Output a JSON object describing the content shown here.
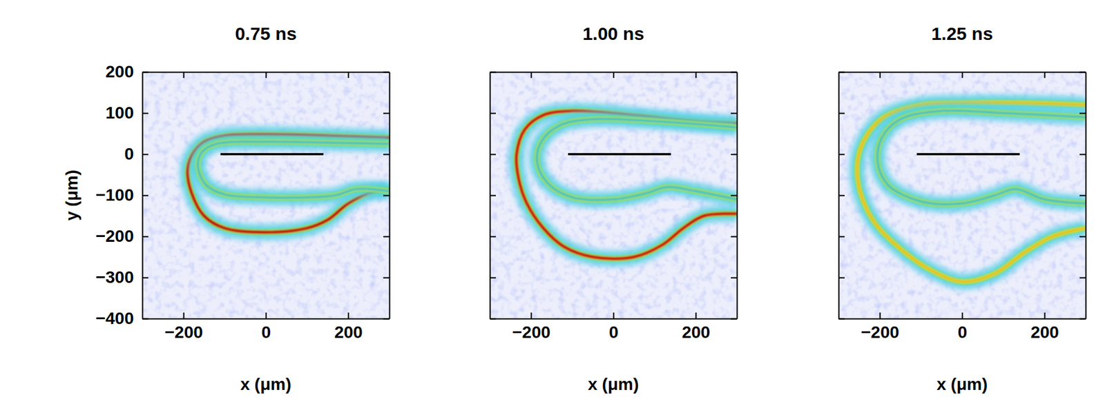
{
  "chart_data": [
    {
      "type": "line",
      "title": "0.75 ns",
      "x_label": "x (μm)",
      "y_label": "y (μm)",
      "xlim": [
        -300,
        300
      ],
      "ylim": [
        -400,
        200
      ],
      "xticks": [
        {
          "value": -200,
          "label": "−200"
        },
        0,
        200
      ],
      "yticks": [
        200,
        100,
        0,
        {
          "value": -100,
          "label": "−100"
        },
        {
          "value": -200,
          "label": "−200"
        },
        {
          "value": -300,
          "label": "−300"
        },
        {
          "value": -400,
          "label": "−400"
        }
      ],
      "series": [
        {
          "color": "#b00000",
          "line_style": "glow",
          "x": [
            300,
            250,
            200,
            150,
            100,
            0,
            -100,
            -150,
            -180,
            -190,
            -178,
            -150,
            -100,
            0,
            150,
            300
          ],
          "values": [
            -85,
            -95,
            -120,
            -160,
            -180,
            -190,
            -180,
            -150,
            -95,
            -40,
            0,
            30,
            45,
            48,
            45,
            40
          ]
        },
        {
          "color": "#30c0d8",
          "line_style": "glow",
          "x": [
            300,
            220,
            170,
            100,
            0,
            -100,
            -145,
            -165,
            -155,
            -120,
            0,
            150,
            300
          ],
          "values": [
            -90,
            -85,
            -100,
            -105,
            -105,
            -98,
            -75,
            -30,
            5,
            25,
            30,
            28,
            25
          ]
        },
        {
          "color": "#000000",
          "line_style": "solid",
          "x": [
            -110,
            140
          ],
          "values": [
            0,
            0
          ]
        }
      ]
    },
    {
      "type": "line",
      "title": "1.00 ns",
      "x_label": "x (μm)",
      "xlim": [
        -300,
        300
      ],
      "ylim": [
        -400,
        200
      ],
      "xticks": [
        {
          "value": -200,
          "label": "−200"
        },
        0,
        200
      ],
      "yticks": [
        200,
        100,
        0,
        {
          "value": -100,
          "label": "−100"
        },
        {
          "value": -200,
          "label": "−200"
        },
        {
          "value": -300,
          "label": "−300"
        },
        {
          "value": -400,
          "label": "−400"
        }
      ],
      "tick_labels": "x",
      "series": [
        {
          "color": "#c00000",
          "line_style": "glow",
          "x": [
            300,
            200,
            50,
            -100,
            -170,
            -215,
            -235,
            -230,
            -210,
            -170,
            -120,
            -50,
            50,
            120,
            170,
            220,
            300
          ],
          "values": [
            75,
            80,
            95,
            105,
            95,
            60,
            0,
            -60,
            -120,
            -180,
            -225,
            -250,
            -250,
            -220,
            -180,
            -150,
            -145
          ]
        },
        {
          "color": "#30c0d8",
          "line_style": "glow",
          "x": [
            300,
            200,
            130,
            80,
            0,
            -100,
            -160,
            -185,
            -175,
            -130,
            -50,
            100,
            300
          ],
          "values": [
            -110,
            -90,
            -80,
            -95,
            -110,
            -105,
            -70,
            -20,
            30,
            70,
            85,
            80,
            65
          ]
        },
        {
          "color": "#000000",
          "line_style": "solid",
          "x": [
            -110,
            140
          ],
          "values": [
            0,
            0
          ]
        }
      ]
    },
    {
      "type": "line",
      "title": "1.25 ns",
      "x_label": "x (μm)",
      "xlim": [
        -300,
        300
      ],
      "ylim": [
        -400,
        200
      ],
      "xticks": [
        {
          "value": -200,
          "label": "−200"
        },
        0,
        200
      ],
      "yticks": [
        200,
        100,
        0,
        {
          "value": -100,
          "label": "−100"
        },
        {
          "value": -200,
          "label": "−200"
        },
        {
          "value": -300,
          "label": "−300"
        },
        {
          "value": -400,
          "label": "−400"
        }
      ],
      "tick_labels": "x",
      "series": [
        {
          "color": "#e0c020",
          "line_style": "glow",
          "x": [
            300,
            150,
            0,
            -100,
            -190,
            -240,
            -255,
            -245,
            -210,
            -150,
            -80,
            0,
            80,
            150,
            220,
            300
          ],
          "values": [
            120,
            125,
            125,
            120,
            90,
            30,
            -30,
            -100,
            -170,
            -230,
            -280,
            -310,
            -290,
            -240,
            -200,
            -180
          ]
        },
        {
          "color": "#30c0d8",
          "line_style": "glow",
          "x": [
            300,
            200,
            130,
            80,
            0,
            -100,
            -180,
            -205,
            -195,
            -150,
            -50,
            100,
            300
          ],
          "values": [
            -120,
            -110,
            -85,
            -100,
            -120,
            -115,
            -75,
            -20,
            40,
            85,
            105,
            100,
            90
          ]
        },
        {
          "color": "#000000",
          "line_style": "solid",
          "x": [
            -110,
            140
          ],
          "values": [
            0,
            0
          ]
        }
      ]
    }
  ]
}
